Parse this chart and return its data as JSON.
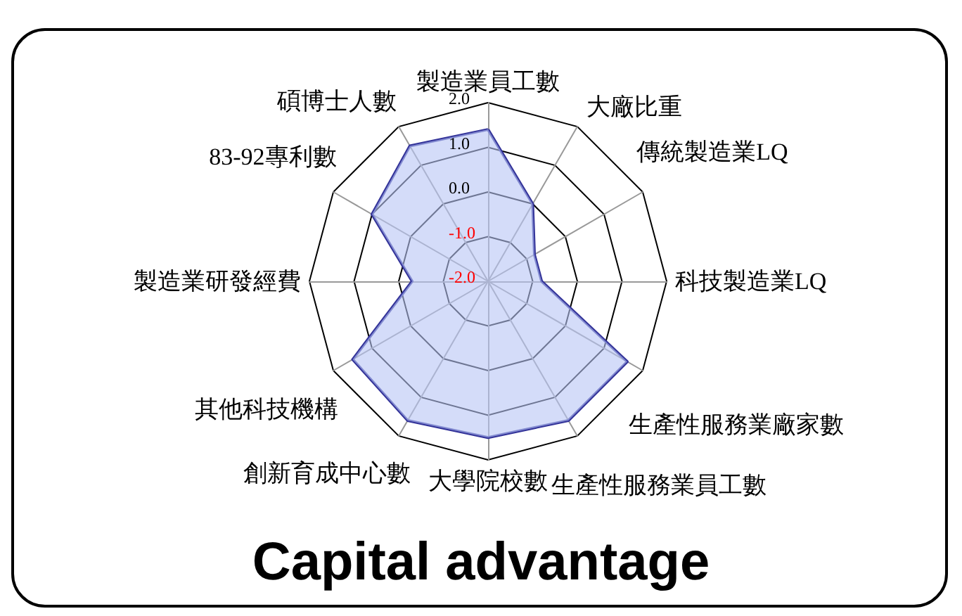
{
  "chart_data": {
    "type": "radar",
    "title": "Capital advantage",
    "categories": [
      "製造業員工數",
      "大廠比重",
      "傳統製造業LQ",
      "科技製造業LQ",
      "生產性服務業廠家數",
      "生產性服務業員工數",
      "大學院校數",
      "創新育成中心數",
      "其他科技機構",
      "製造業研發經費",
      "83-92專利數",
      "碩博士人數"
    ],
    "series": [
      {
        "color": "#333399",
        "values": [
          1.4,
          0.0,
          -0.8,
          -0.8,
          1.6,
          1.6,
          1.5,
          1.6,
          1.5,
          -0.3,
          1.0,
          1.5
        ]
      }
    ],
    "ylim": [
      -2,
      2
    ],
    "yticks": [
      {
        "value": -2,
        "label": "-2.0"
      },
      {
        "value": -1,
        "label": "-1.0"
      },
      {
        "value": 0,
        "label": "0.0"
      },
      {
        "value": 1,
        "label": "1.0"
      },
      {
        "value": 2,
        "label": "2.0"
      }
    ],
    "grid": true,
    "marker": "none"
  }
}
